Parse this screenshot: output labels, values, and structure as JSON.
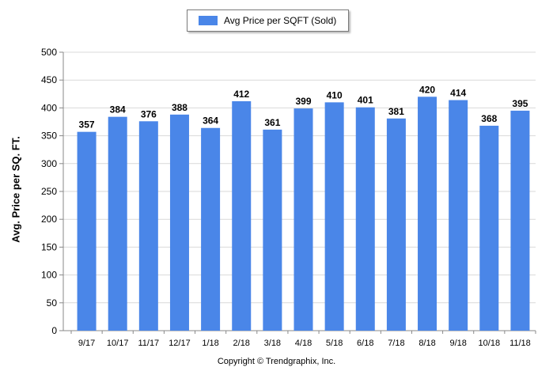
{
  "chart_data": {
    "type": "bar",
    "categories": [
      "9/17",
      "10/17",
      "11/17",
      "12/17",
      "1/18",
      "2/18",
      "3/18",
      "4/18",
      "5/18",
      "6/18",
      "7/18",
      "8/18",
      "9/18",
      "10/18",
      "11/18"
    ],
    "series": [
      {
        "name": "Avg Price per SQFT (Sold)",
        "values": [
          357,
          384,
          376,
          388,
          364,
          412,
          361,
          399,
          410,
          401,
          381,
          420,
          414,
          368,
          395
        ]
      }
    ],
    "ylabel": "Avg. Price per SQ. FT.",
    "xlabel": "",
    "ylim": [
      0,
      500
    ],
    "yticks": [
      0,
      50,
      100,
      150,
      200,
      250,
      300,
      350,
      400,
      450,
      500
    ],
    "grid": true,
    "legend_position": "top-center",
    "data_labels": true,
    "bar_color": "#4a86e8"
  },
  "footer": {
    "copyright": "Copyright © Trendgraphix, Inc."
  }
}
